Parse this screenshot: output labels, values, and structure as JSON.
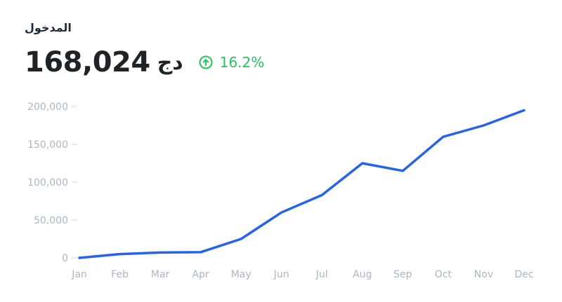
{
  "header": {
    "title": "المدخول",
    "amount": "168,024",
    "currency": "دج",
    "change": "16.2%",
    "change_icon": "arrow-up-circle-icon",
    "change_color": "#22c55e"
  },
  "chart_data": {
    "type": "line",
    "categories": [
      "Jan",
      "Feb",
      "Mar",
      "Apr",
      "May",
      "Jun",
      "Jul",
      "Aug",
      "Sep",
      "Oct",
      "Nov",
      "Dec"
    ],
    "series": [
      {
        "values": [
          0,
          5000,
          7000,
          7500,
          25000,
          60000,
          83000,
          125000,
          115000,
          160000,
          175000,
          195000
        ]
      }
    ],
    "yticks": [
      0,
      50000,
      100000,
      150000,
      200000
    ],
    "ytick_labels": [
      "0",
      "50,000",
      "100,000",
      "150,000",
      "200,000"
    ],
    "ylim": [
      0,
      200000
    ],
    "line_color": "#2563eb",
    "grid": false
  }
}
